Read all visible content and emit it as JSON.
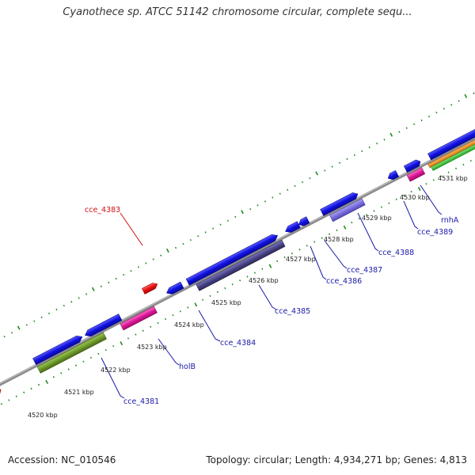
{
  "title": "Cyanothece sp. ATCC 51142 chromosome circular, complete sequ...",
  "footer": {
    "accession": "Accession: NC_010546",
    "summary": "Topology: circular; Length: 4,934,271 bp; Genes: 4,813"
  },
  "colors": {
    "backbone": "#8a8a8a",
    "ticks": "#1f8a1f",
    "blue": "#1010e0",
    "purple": "#4a4488",
    "lavender": "#7a6ee0",
    "red": "#e81010",
    "pink": "#e0189a",
    "olive": "#6e9a2a",
    "orange": "#f08a10",
    "green": "#30c030",
    "label_blue": "#1a1aa8",
    "label_red": "#d01010"
  },
  "scale_labels": [
    "4520 kbp",
    "4521 kbp",
    "4522 kbp",
    "4523 kbp",
    "4524 kbp",
    "4525 kbp",
    "4526 kbp",
    "4527 kbp",
    "4528 kbp",
    "4529 kbp",
    "4530 kbp",
    "4531 kbp"
  ],
  "gene_labels": [
    {
      "id": "cce_4383",
      "color": "red"
    },
    {
      "id": "cce_4381",
      "color": "blue"
    },
    {
      "id": "holB",
      "color": "blue"
    },
    {
      "id": "cce_4384",
      "color": "blue"
    },
    {
      "id": "cce_4385",
      "color": "blue"
    },
    {
      "id": "cce_4386",
      "color": "blue"
    },
    {
      "id": "cce_4387",
      "color": "blue"
    },
    {
      "id": "cce_4388",
      "color": "blue"
    },
    {
      "id": "cce_4389",
      "color": "blue"
    },
    {
      "id": "rnhA",
      "color": "blue"
    }
  ],
  "features": [
    {
      "type": "cds",
      "color": "blue"
    },
    {
      "type": "cds",
      "color": "purple"
    },
    {
      "type": "cds",
      "color": "lavender"
    },
    {
      "type": "cds",
      "color": "red"
    },
    {
      "type": "cds",
      "color": "pink"
    },
    {
      "type": "rRNA",
      "color": "olive"
    },
    {
      "type": "cds",
      "color": "orange"
    },
    {
      "type": "cds",
      "color": "green"
    }
  ]
}
